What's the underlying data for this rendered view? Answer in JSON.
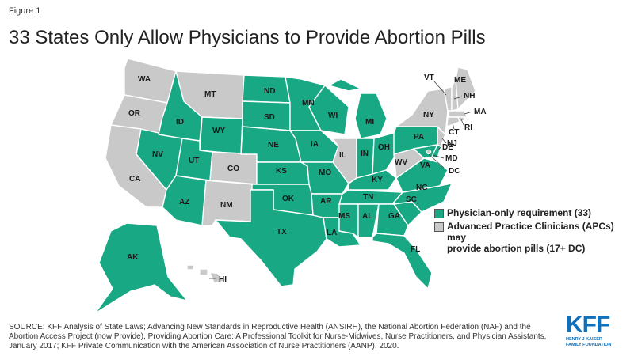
{
  "figure_label": "Figure 1",
  "title": "33 States Only Allow Physicians to Provide Abortion Pills",
  "colors": {
    "physician": "#18a884",
    "apc": "#c9c9c9",
    "border": "#ffffff"
  },
  "legend": {
    "physician": "Physician-only requirement (33)",
    "apc_line1": "Advanced Practice Clinicians (APCs) may",
    "apc_line2": "provide abortion pills (17+ DC)"
  },
  "states": {
    "WA": "apc",
    "OR": "apc",
    "CA": "apc",
    "MT": "apc",
    "ID": "physician",
    "NV": "physician",
    "UT": "physician",
    "AZ": "physician",
    "WY": "physician",
    "CO": "apc",
    "NM": "apc",
    "ND": "physician",
    "SD": "physician",
    "NE": "physician",
    "KS": "physician",
    "OK": "physician",
    "TX": "physician",
    "MN": "physician",
    "IA": "physician",
    "MO": "physician",
    "AR": "physician",
    "LA": "physician",
    "WI": "physician",
    "IL": "apc",
    "MI": "physician",
    "IN": "physician",
    "OH": "physician",
    "KY": "physician",
    "TN": "physician",
    "MS": "physician",
    "AL": "physician",
    "GA": "physician",
    "FL": "physician",
    "SC": "physician",
    "NC": "physician",
    "VA": "physician",
    "WV": "apc",
    "PA": "physician",
    "NY": "apc",
    "VT": "apc",
    "NH": "apc",
    "ME": "apc",
    "MA": "apc",
    "RI": "apc",
    "CT": "apc",
    "NJ": "apc",
    "DE": "physician",
    "MD": "physician",
    "DC": "apc",
    "AK": "physician",
    "HI": "apc"
  },
  "source": "SOURCE: KFF Analysis of State Laws; Advancing New Standards in Reproductive Health (ANSIRH), the National Abortion Federation (NAF) and the Abortion Access Project (now Provide), Providing Abortion Care: A Professional Toolkit for Nurse-Midwives, Nurse Practitioners, and Physician Assistants, January 2017; KFF Private Communication with the American Association of Nurse Practitioners (AANP), 2020.",
  "logo": {
    "main": "KFF",
    "sub1": "HENRY J KAISER",
    "sub2": "FAMILY FOUNDATION"
  }
}
